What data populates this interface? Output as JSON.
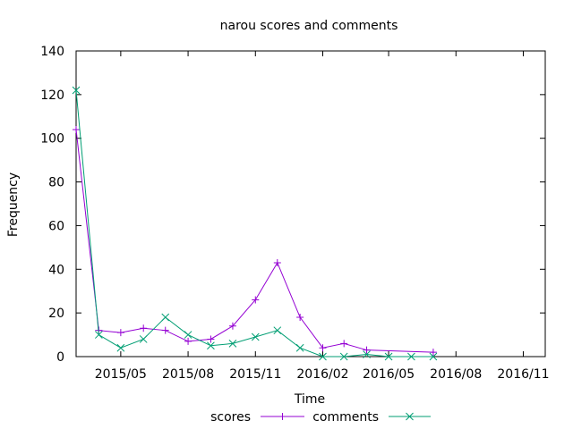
{
  "chart_data": {
    "type": "line",
    "title": "narou scores and comments",
    "xlabel": "Time",
    "ylabel": "Frequency",
    "xlim": [
      "2015-03-01",
      "2016-12-01"
    ],
    "ylim": [
      0,
      140
    ],
    "y_ticks": [
      0,
      20,
      40,
      60,
      80,
      100,
      120,
      140
    ],
    "x_ticks": [
      {
        "date": "2015-05-01",
        "label": "2015/05"
      },
      {
        "date": "2015-08-01",
        "label": "2015/08"
      },
      {
        "date": "2015-11-01",
        "label": "2015/11"
      },
      {
        "date": "2016-02-01",
        "label": "2016/02"
      },
      {
        "date": "2016-05-01",
        "label": "2016/05"
      },
      {
        "date": "2016-08-01",
        "label": "2016/08"
      },
      {
        "date": "2016-11-01",
        "label": "2016/11"
      }
    ],
    "grid": false,
    "legend_position": "bottom",
    "series": [
      {
        "name": "scores",
        "color": "#9400d3",
        "marker": "plus",
        "x": [
          "2015-03-01",
          "2015-04-01",
          "2015-05-01",
          "2015-06-01",
          "2015-07-01",
          "2015-08-01",
          "2015-09-01",
          "2015-10-01",
          "2015-11-01",
          "2015-12-01",
          "2016-01-01",
          "2016-02-01",
          "2016-03-01",
          "2016-04-01",
          "2016-07-01"
        ],
        "y": [
          104,
          12,
          11,
          13,
          12,
          7,
          8,
          14,
          26,
          43,
          18,
          4,
          6,
          3,
          2
        ]
      },
      {
        "name": "comments",
        "color": "#009e73",
        "marker": "cross",
        "x": [
          "2015-03-01",
          "2015-04-01",
          "2015-05-01",
          "2015-06-01",
          "2015-07-01",
          "2015-08-01",
          "2015-09-01",
          "2015-10-01",
          "2015-11-01",
          "2015-12-01",
          "2016-01-01",
          "2016-02-01",
          "2016-03-01",
          "2016-04-01",
          "2016-05-01",
          "2016-06-01",
          "2016-07-01"
        ],
        "y": [
          122,
          10,
          4,
          8,
          18,
          10,
          5,
          6,
          9,
          12,
          4,
          0,
          0,
          1,
          0,
          0,
          0
        ]
      }
    ]
  }
}
